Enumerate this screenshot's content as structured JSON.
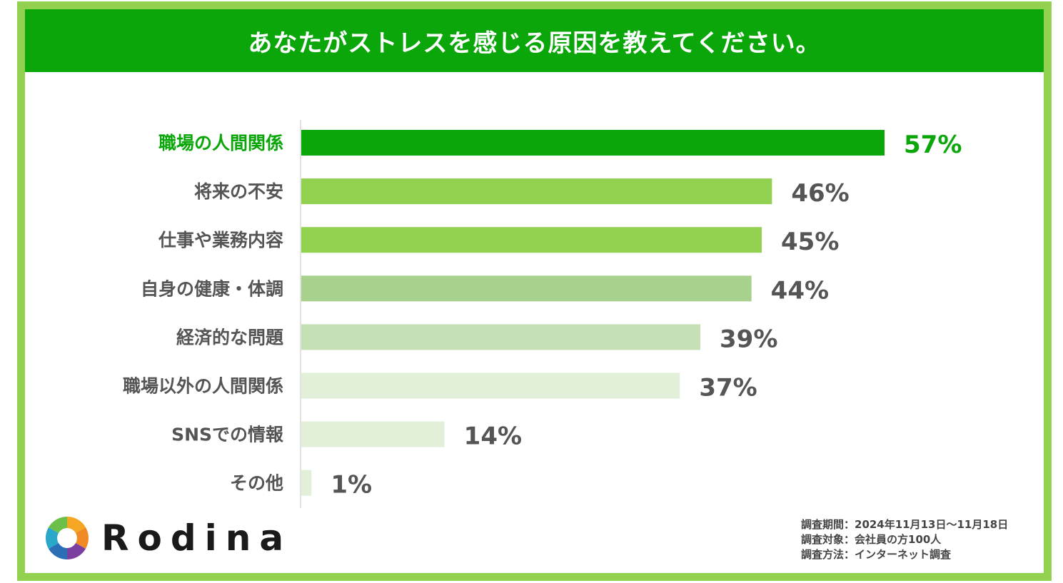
{
  "title": "あなたがストレスを感じる原因を教えてください。",
  "chart_data": {
    "type": "bar",
    "orientation": "horizontal",
    "title": "あなたがストレスを感じる原因を教えてください。",
    "categories": [
      "職場の人間関係",
      "将来の不安",
      "仕事や業務内容",
      "自身の健康・体調",
      "経済的な問題",
      "職場以外の人間関係",
      "SNSでの情報",
      "その他"
    ],
    "values": [
      57,
      46,
      45,
      44,
      39,
      37,
      14,
      1
    ],
    "value_labels": [
      "57%",
      "46%",
      "45%",
      "44%",
      "39%",
      "37%",
      "14%",
      "1%"
    ],
    "unit": "%",
    "xlim": [
      0,
      57
    ],
    "bar_colors": [
      "#0aa60a",
      "#92d050",
      "#92d050",
      "#a9d18e",
      "#c5e0b4",
      "#e2f0d9",
      "#e2f0d9",
      "#e2f0d9"
    ],
    "highlight_color": "#0aa60a",
    "label_color": "#555555",
    "grid": false
  },
  "brand": {
    "name": "Rodina"
  },
  "notes": [
    "調査期間：2024年11月13日〜11月18日",
    "調査対象：会社員の方100人",
    "調査方法：インターネット調査"
  ]
}
